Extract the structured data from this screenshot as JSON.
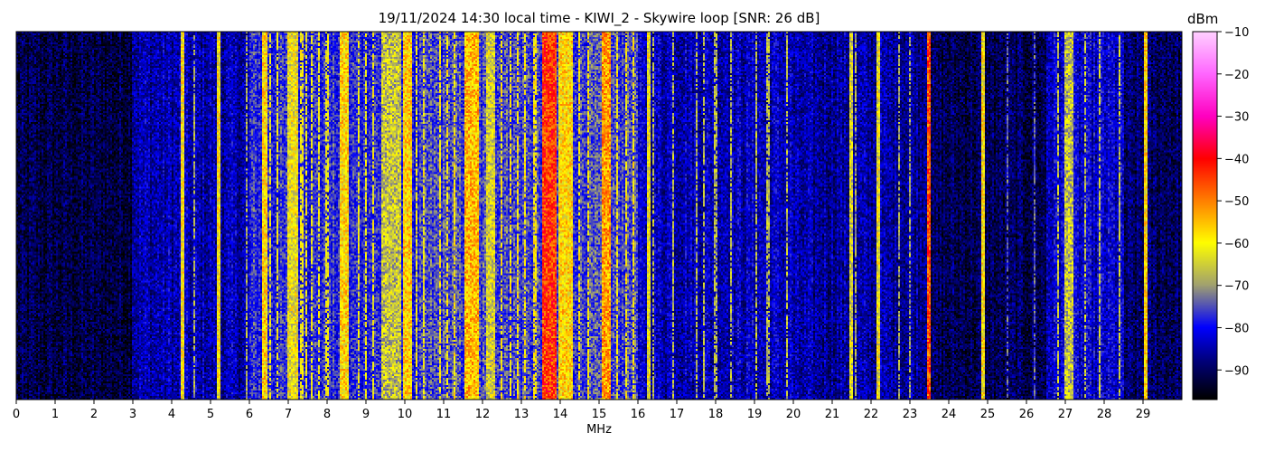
{
  "title": "19/11/2024 14:30 local time - KIWI_2 - Skywire loop [SNR: 26 dB]",
  "colorbar": {
    "unit": "dBm",
    "range": [
      -97,
      -10
    ],
    "ticks": [
      -10,
      -20,
      -30,
      -40,
      -50,
      -60,
      -70,
      -80,
      -90
    ],
    "tick_labels": [
      "−10",
      "−20",
      "−30",
      "−40",
      "−50",
      "−60",
      "−70",
      "−80",
      "−90"
    ],
    "colormap_stops": [
      {
        "v": -97,
        "color": "#000000"
      },
      {
        "v": -88,
        "color": "#00007a"
      },
      {
        "v": -80,
        "color": "#0000ff"
      },
      {
        "v": -70,
        "color": "#a0a070"
      },
      {
        "v": -60,
        "color": "#ffff00"
      },
      {
        "v": -50,
        "color": "#ff8000"
      },
      {
        "v": -40,
        "color": "#ff0000"
      },
      {
        "v": -30,
        "color": "#ff00c0"
      },
      {
        "v": -20,
        "color": "#ff66ff"
      },
      {
        "v": -10,
        "color": "#ffd0ff"
      }
    ]
  },
  "chart_data": {
    "type": "heatmap",
    "title": "19/11/2024 14:30 local time - KIWI_2 - Skywire loop [SNR: 26 dB]",
    "xlabel": "MHz",
    "ylabel": "",
    "xlim": [
      0,
      30
    ],
    "x_ticks": [
      0,
      1,
      2,
      3,
      4,
      5,
      6,
      7,
      8,
      9,
      10,
      11,
      12,
      13,
      14,
      15,
      16,
      17,
      18,
      19,
      20,
      21,
      22,
      23,
      24,
      25,
      26,
      27,
      28,
      29
    ],
    "x_tick_labels": [
      "0",
      "1",
      "2",
      "3",
      "4",
      "5",
      "6",
      "7",
      "8",
      "9",
      "10",
      "11",
      "12",
      "13",
      "14",
      "15",
      "16",
      "17",
      "18",
      "19",
      "20",
      "21",
      "22",
      "23",
      "24",
      "25",
      "26",
      "27",
      "28",
      "29"
    ],
    "value_unit": "dBm",
    "background_level_by_band": [
      {
        "from": 0,
        "to": 3,
        "level": -92
      },
      {
        "from": 3,
        "to": 6,
        "level": -85
      },
      {
        "from": 6,
        "to": 10.5,
        "level": -78
      },
      {
        "from": 10.5,
        "to": 16,
        "level": -76
      },
      {
        "from": 16,
        "to": 20,
        "level": -84
      },
      {
        "from": 20,
        "to": 23.5,
        "level": -86
      },
      {
        "from": 23.5,
        "to": 26.5,
        "level": -91
      },
      {
        "from": 26.5,
        "to": 28.5,
        "level": -83
      },
      {
        "from": 28.5,
        "to": 30,
        "level": -90
      }
    ],
    "bands": [
      {
        "from": 4.25,
        "to": 4.3,
        "level": -60
      },
      {
        "from": 5.2,
        "to": 5.25,
        "level": -60
      },
      {
        "from": 6.35,
        "to": 6.45,
        "level": -58
      },
      {
        "from": 7.0,
        "to": 7.25,
        "level": -62
      },
      {
        "from": 8.35,
        "to": 8.55,
        "level": -58
      },
      {
        "from": 9.4,
        "to": 9.9,
        "level": -66
      },
      {
        "from": 9.95,
        "to": 10.15,
        "level": -57
      },
      {
        "from": 11.55,
        "to": 11.9,
        "level": -55
      },
      {
        "from": 12.1,
        "to": 12.3,
        "level": -64
      },
      {
        "from": 13.55,
        "to": 13.9,
        "level": -44
      },
      {
        "from": 13.95,
        "to": 14.3,
        "level": -58
      },
      {
        "from": 15.1,
        "to": 15.3,
        "level": -52
      },
      {
        "from": 16.25,
        "to": 16.3,
        "level": -62
      },
      {
        "from": 21.45,
        "to": 21.5,
        "level": -64
      },
      {
        "from": 22.15,
        "to": 22.2,
        "level": -62
      },
      {
        "from": 23.45,
        "to": 23.5,
        "level": -46
      },
      {
        "from": 24.85,
        "to": 24.9,
        "level": -60
      },
      {
        "from": 27.0,
        "to": 27.2,
        "level": -66
      },
      {
        "from": 29.05,
        "to": 29.1,
        "level": -58
      }
    ],
    "carriers_MHz": [
      4.6,
      5.95,
      6.55,
      6.7,
      7.35,
      7.45,
      7.6,
      7.8,
      8.0,
      8.8,
      9.0,
      9.2,
      10.3,
      10.5,
      10.9,
      11.1,
      11.3,
      12.5,
      12.7,
      12.9,
      13.1,
      13.35,
      14.5,
      14.7,
      15.45,
      15.7,
      15.9,
      16.4,
      16.9,
      17.5,
      17.7,
      18.0,
      18.4,
      19.05,
      19.35,
      19.85,
      21.6,
      22.7,
      23.0,
      25.5,
      26.2,
      26.8,
      27.5,
      27.9,
      28.4
    ]
  }
}
